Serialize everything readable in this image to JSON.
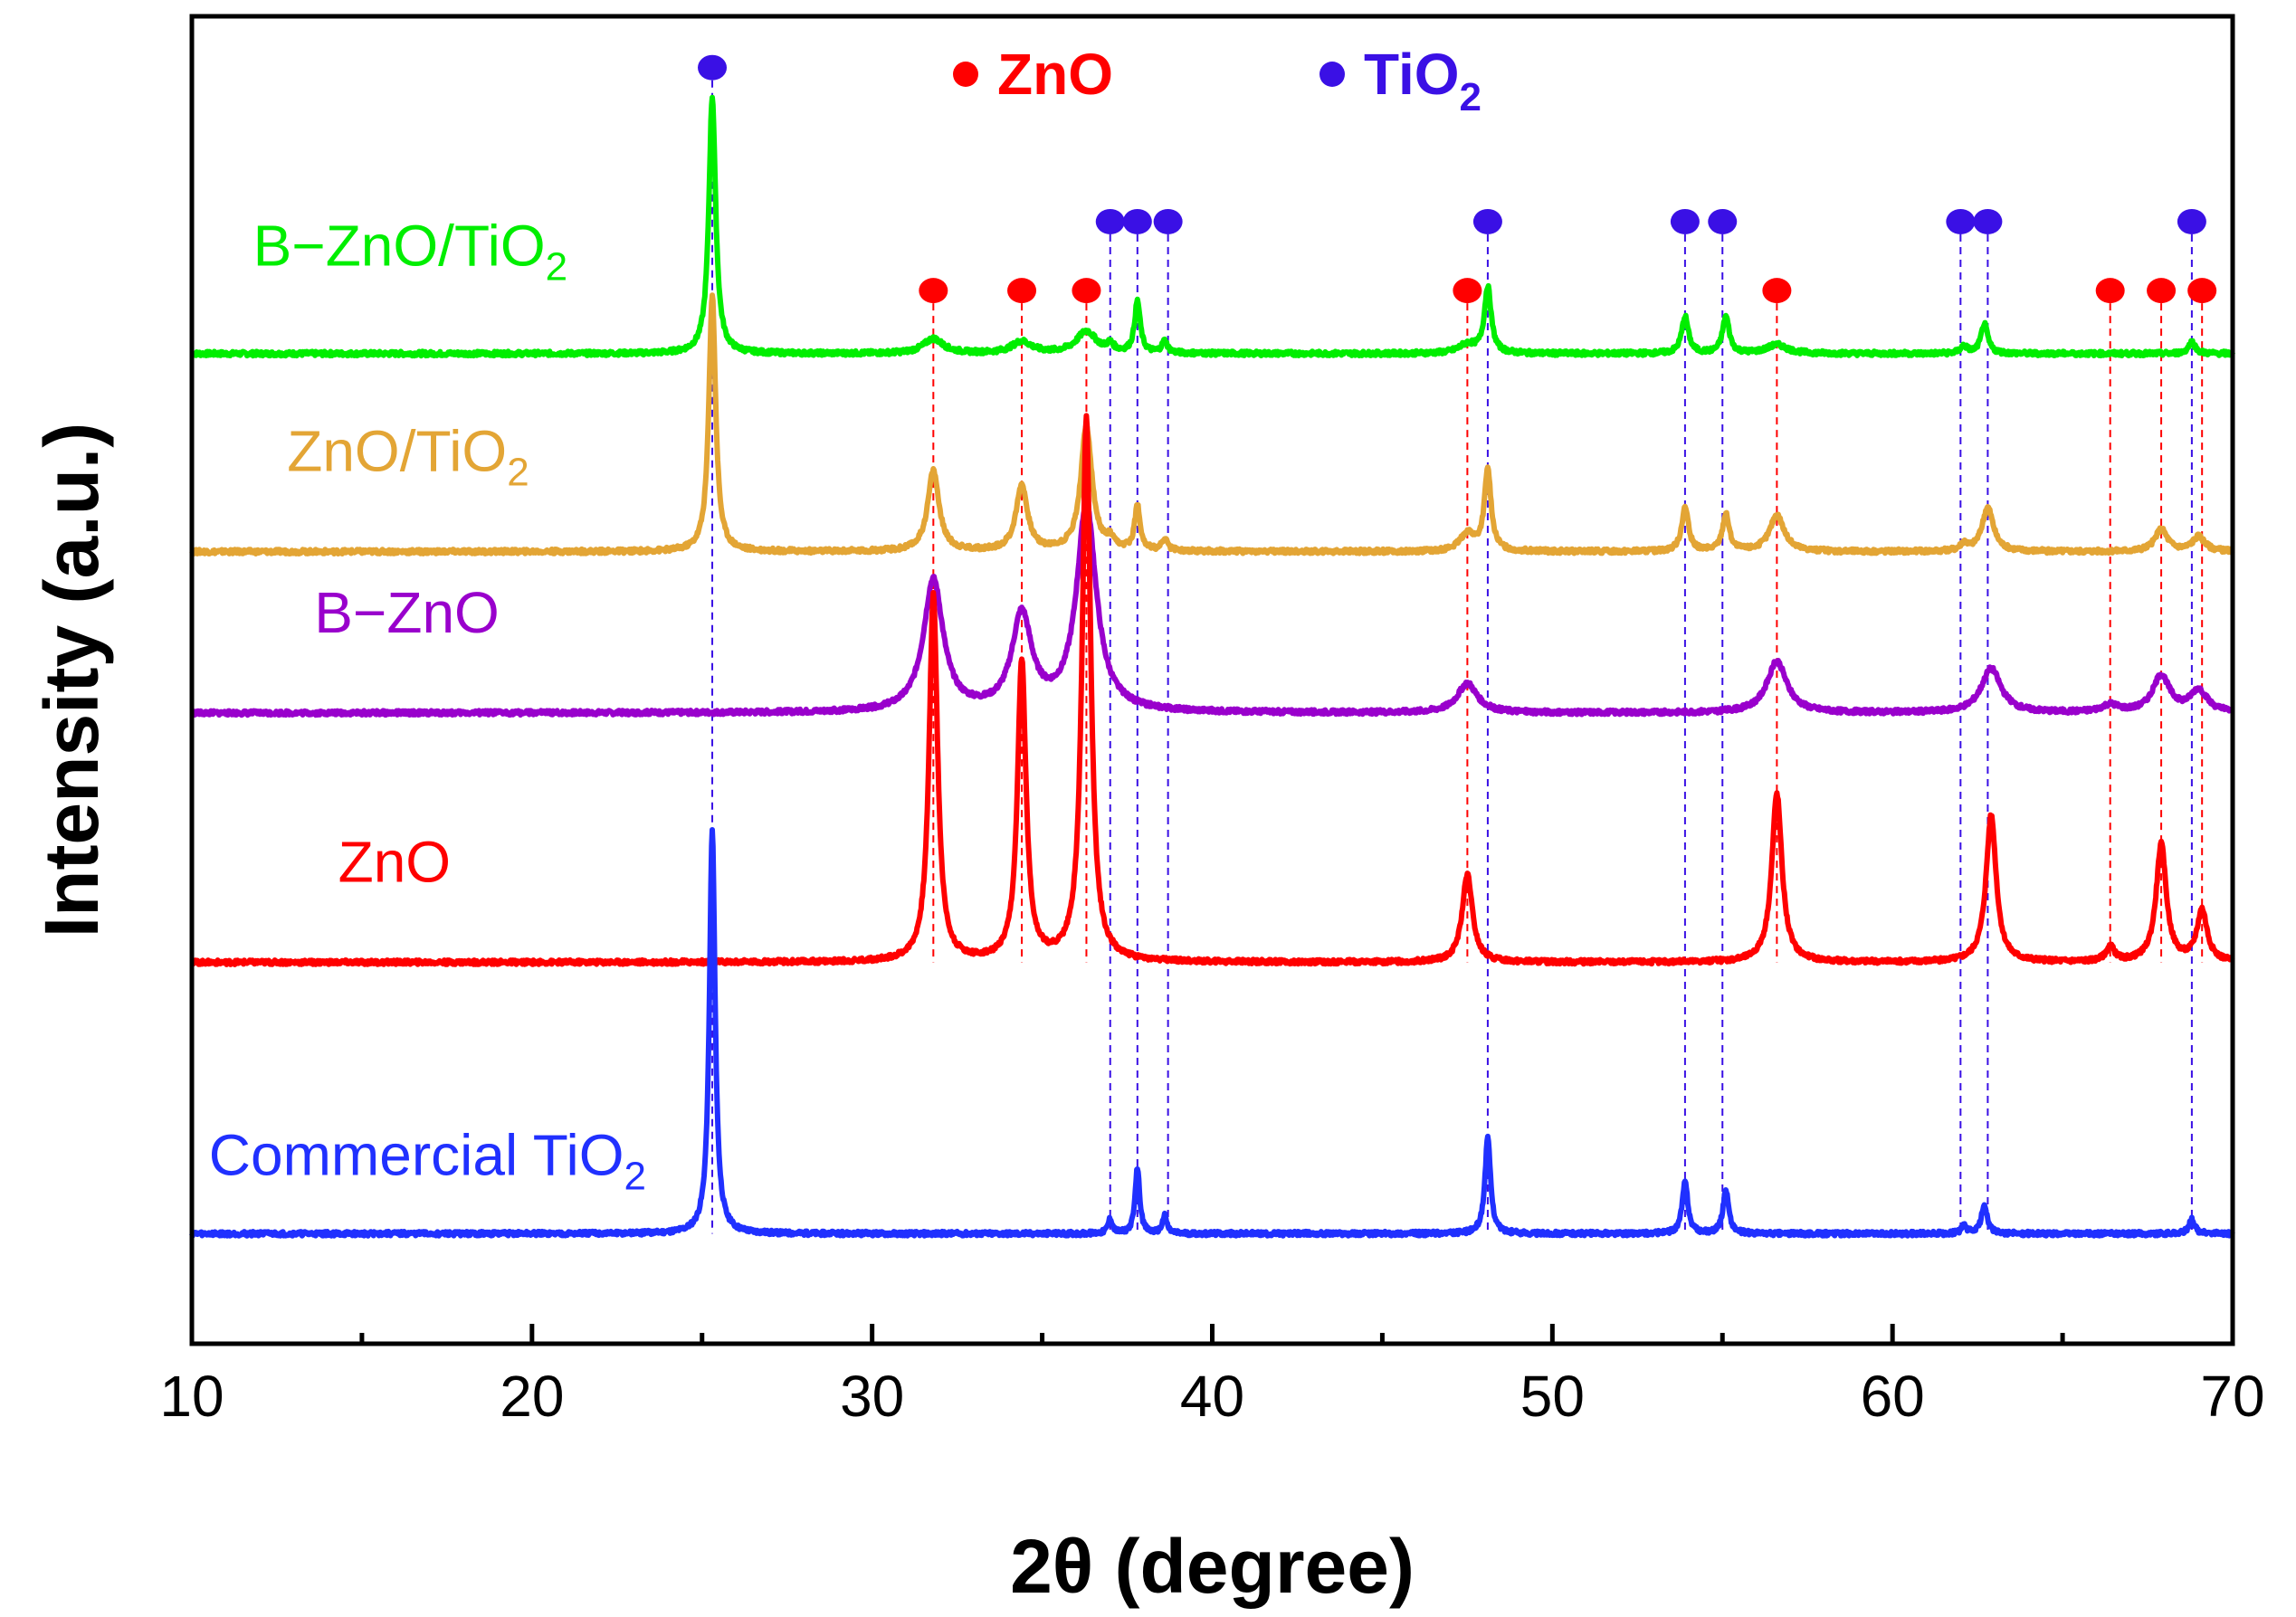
{
  "chart_data": {
    "type": "line",
    "xlabel": "2θ (degree)",
    "ylabel": "Intensity (a.u.)",
    "xlim": [
      10,
      70
    ],
    "x_ticks": [
      10,
      20,
      30,
      40,
      50,
      60,
      70
    ],
    "grid": false,
    "y_tick_labels": false,
    "legend": {
      "placement": "top",
      "entries": [
        {
          "name": "ZnO",
          "color": "#ff0000"
        },
        {
          "name": "TiO",
          "subscript": "2",
          "color": "#3a10e5"
        }
      ]
    },
    "series": [
      {
        "name": "B−ZnO/TiO",
        "subscript": "2",
        "color": "#00ee00",
        "baseline": 6.0,
        "label_x": 11.8,
        "label_offset": 0.6,
        "peaks": [
          [
            25.3,
            1.75,
            0.12
          ],
          [
            31.8,
            0.1,
            0.35
          ],
          [
            34.4,
            0.08,
            0.35
          ],
          [
            36.3,
            0.15,
            0.35
          ],
          [
            37.0,
            0.05,
            0.12
          ],
          [
            37.8,
            0.35,
            0.1
          ],
          [
            38.6,
            0.08,
            0.1
          ],
          [
            47.5,
            0.06,
            0.3
          ],
          [
            48.1,
            0.45,
            0.12
          ],
          [
            53.9,
            0.25,
            0.12
          ],
          [
            55.1,
            0.25,
            0.12
          ],
          [
            56.6,
            0.06,
            0.35
          ],
          [
            62.1,
            0.05,
            0.12
          ],
          [
            62.7,
            0.2,
            0.12
          ],
          [
            68.8,
            0.08,
            0.12
          ]
        ]
      },
      {
        "name": "ZnO/TiO",
        "subscript": "2",
        "color": "#e3a535",
        "baseline": 4.65,
        "label_x": 12.8,
        "label_offset": 0.55,
        "peaks": [
          [
            25.3,
            1.75,
            0.12
          ],
          [
            31.8,
            0.55,
            0.2
          ],
          [
            34.4,
            0.45,
            0.2
          ],
          [
            36.3,
            0.85,
            0.2
          ],
          [
            37.0,
            0.06,
            0.12
          ],
          [
            37.8,
            0.3,
            0.1
          ],
          [
            38.6,
            0.08,
            0.1
          ],
          [
            47.5,
            0.12,
            0.25
          ],
          [
            48.1,
            0.55,
            0.12
          ],
          [
            53.9,
            0.3,
            0.12
          ],
          [
            55.1,
            0.25,
            0.12
          ],
          [
            56.6,
            0.25,
            0.25
          ],
          [
            62.1,
            0.05,
            0.12
          ],
          [
            62.8,
            0.3,
            0.2
          ],
          [
            67.9,
            0.15,
            0.22
          ],
          [
            69.0,
            0.1,
            0.22
          ]
        ]
      },
      {
        "name": "B−ZnO",
        "color": "#9900cc",
        "baseline": 3.55,
        "label_x": 13.6,
        "label_offset": 0.55,
        "peaks": [
          [
            31.8,
            0.9,
            0.35
          ],
          [
            34.4,
            0.65,
            0.35
          ],
          [
            36.3,
            1.4,
            0.35
          ],
          [
            47.5,
            0.2,
            0.35
          ],
          [
            56.6,
            0.35,
            0.35
          ],
          [
            62.9,
            0.3,
            0.35
          ],
          [
            66.4,
            0.05,
            0.3
          ],
          [
            67.9,
            0.25,
            0.3
          ],
          [
            69.0,
            0.15,
            0.3
          ]
        ]
      },
      {
        "name": "ZnO",
        "color": "#ff0000",
        "baseline": 1.85,
        "label_x": 14.3,
        "label_offset": 0.55,
        "peaks": [
          [
            31.8,
            2.5,
            0.15
          ],
          [
            34.4,
            2.05,
            0.15
          ],
          [
            36.3,
            3.7,
            0.15
          ],
          [
            47.5,
            0.6,
            0.18
          ],
          [
            56.6,
            1.15,
            0.18
          ],
          [
            62.9,
            1.0,
            0.18
          ],
          [
            66.4,
            0.1,
            0.15
          ],
          [
            67.9,
            0.8,
            0.18
          ],
          [
            69.1,
            0.35,
            0.18
          ]
        ]
      },
      {
        "name": "Commercial TiO",
        "subscript": "2",
        "color": "#2030ff",
        "baseline": 0.0,
        "label_x": 10.5,
        "label_offset": 0.4,
        "peaks": [
          [
            25.3,
            2.75,
            0.1
          ],
          [
            37.0,
            0.1,
            0.08
          ],
          [
            37.8,
            0.45,
            0.08
          ],
          [
            38.6,
            0.12,
            0.08
          ],
          [
            48.1,
            0.65,
            0.1
          ],
          [
            53.9,
            0.35,
            0.1
          ],
          [
            55.1,
            0.3,
            0.1
          ],
          [
            62.1,
            0.05,
            0.1
          ],
          [
            62.7,
            0.2,
            0.1
          ],
          [
            68.8,
            0.1,
            0.1
          ]
        ]
      }
    ],
    "reference_lines": {
      "ZnO": {
        "color": "#ff0000",
        "positions": [
          31.8,
          34.4,
          36.3,
          47.5,
          56.6,
          66.4,
          67.9,
          69.1
        ]
      },
      "TiO2": {
        "color": "#3a10e5",
        "positions": [
          25.3,
          37.0,
          37.8,
          38.7,
          48.1,
          53.9,
          55.0,
          62.0,
          62.8,
          68.8
        ]
      }
    },
    "markers": {
      "ZnO": {
        "color": "#ff0000",
        "y": 6.43,
        "positions": [
          31.8,
          34.4,
          36.3,
          47.5,
          56.6,
          66.4,
          67.9,
          69.1
        ]
      },
      "TiO2": {
        "color": "#3a10e5",
        "y": 6.9,
        "top_y": 7.95,
        "top_positions": [
          25.3
        ],
        "positions": [
          37.0,
          37.8,
          38.7,
          48.1,
          53.9,
          55.0,
          62.0,
          62.8,
          68.8
        ]
      }
    },
    "y_range": [
      -0.75,
      8.3
    ],
    "ref_line_range": [
      1.85,
      7.95
    ]
  }
}
